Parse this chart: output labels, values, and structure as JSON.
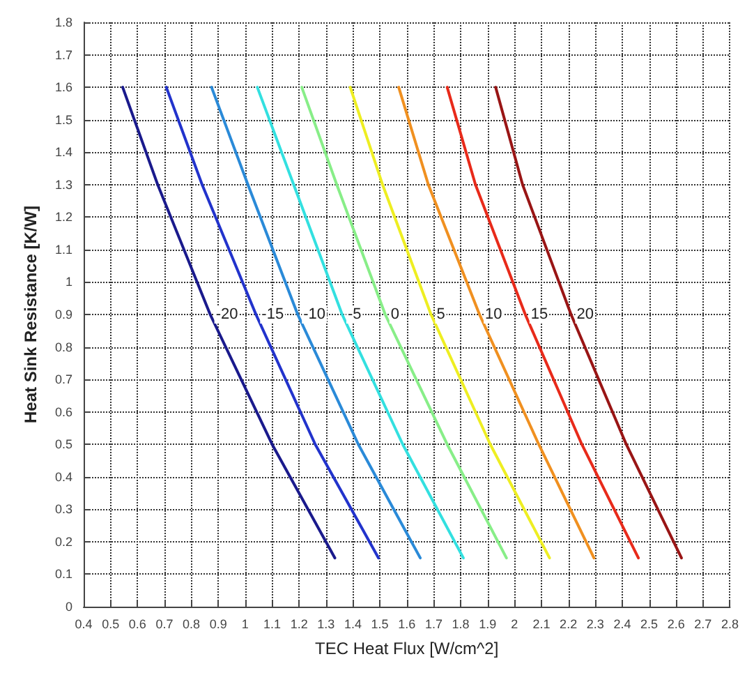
{
  "chart_data": {
    "type": "line",
    "xlabel": "TEC Heat Flux [W/cm^2]",
    "ylabel": "Heat Sink Resistance [K/W]",
    "xlim": [
      0.4,
      2.8
    ],
    "ylim": [
      0,
      1.8
    ],
    "xticks": [
      0.4,
      0.5,
      0.6,
      0.7,
      0.8,
      0.9,
      1,
      1.1,
      1.2,
      1.3,
      1.4,
      1.5,
      1.6,
      1.7,
      1.8,
      1.9,
      2,
      2.1,
      2.2,
      2.3,
      2.4,
      2.5,
      2.6,
      2.7,
      2.8
    ],
    "yticks": [
      0,
      0.1,
      0.2,
      0.3,
      0.4,
      0.5,
      0.6,
      0.7,
      0.8,
      0.9,
      1,
      1.1,
      1.2,
      1.3,
      1.4,
      1.5,
      1.6,
      1.7,
      1.8
    ],
    "grid": true,
    "legend": false,
    "marker": "none",
    "line_style": "solid",
    "series": [
      {
        "name": "-20",
        "color": "#1a1a8c",
        "x": [
          0.545,
          0.675,
          0.87,
          1.1,
          1.333
        ],
        "values": [
          1.6,
          1.3,
          0.9,
          0.5,
          0.15
        ]
      },
      {
        "name": "-15",
        "color": "#2233cc",
        "x": [
          0.707,
          0.84,
          1.04,
          1.26,
          1.495
        ],
        "values": [
          1.6,
          1.3,
          0.9,
          0.5,
          0.15
        ]
      },
      {
        "name": "-10",
        "color": "#2a8ad8",
        "x": [
          0.875,
          1.01,
          1.195,
          1.42,
          1.65
        ],
        "values": [
          1.6,
          1.3,
          0.9,
          0.5,
          0.15
        ]
      },
      {
        "name": "-5",
        "color": "#33e0e0",
        "x": [
          1.045,
          1.18,
          1.36,
          1.585,
          1.81
        ],
        "values": [
          1.6,
          1.3,
          0.9,
          0.5,
          0.15
        ]
      },
      {
        "name": "0",
        "color": "#88ee88",
        "x": [
          1.21,
          1.34,
          1.52,
          1.75,
          1.97
        ],
        "values": [
          1.6,
          1.3,
          0.9,
          0.5,
          0.15
        ]
      },
      {
        "name": "5",
        "color": "#eeee22",
        "x": [
          1.39,
          1.51,
          1.69,
          1.91,
          2.13
        ],
        "values": [
          1.6,
          1.3,
          0.9,
          0.5,
          0.15
        ]
      },
      {
        "name": "10",
        "color": "#f09020",
        "x": [
          1.57,
          1.68,
          1.87,
          2.09,
          2.295
        ],
        "values": [
          1.6,
          1.3,
          0.9,
          0.5,
          0.15
        ]
      },
      {
        "name": "15",
        "color": "#e82a1a",
        "x": [
          1.75,
          1.855,
          2.04,
          2.25,
          2.46
        ],
        "values": [
          1.6,
          1.3,
          0.9,
          0.5,
          0.15
        ]
      },
      {
        "name": "20",
        "color": "#991515",
        "x": [
          1.93,
          2.03,
          2.21,
          2.415,
          2.62
        ],
        "values": [
          1.6,
          1.3,
          0.9,
          0.5,
          0.15
        ]
      }
    ]
  }
}
